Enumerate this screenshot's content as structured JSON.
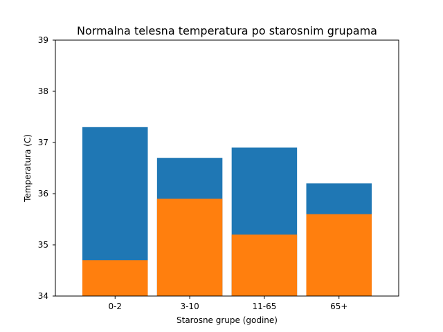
{
  "chart_data": {
    "type": "bar",
    "stacking": "overlay",
    "title": "Normalna telesna temperatura po starosnim grupama",
    "xlabel": "Starosne grupe (godine)",
    "ylabel": "Temperatura (C)",
    "ylim": [
      34,
      39
    ],
    "yticks": [
      "34",
      "35",
      "36",
      "37",
      "38",
      "39"
    ],
    "categories": [
      "0-2",
      "3-10",
      "11-65",
      "65+"
    ],
    "grid": false,
    "legend": "none",
    "series": [
      {
        "values": [
          37.3,
          36.7,
          36.9,
          36.2
        ],
        "color": "#1f77b4"
      },
      {
        "values": [
          34.7,
          35.9,
          35.2,
          35.6
        ],
        "color": "#ff7f0e"
      }
    ]
  }
}
